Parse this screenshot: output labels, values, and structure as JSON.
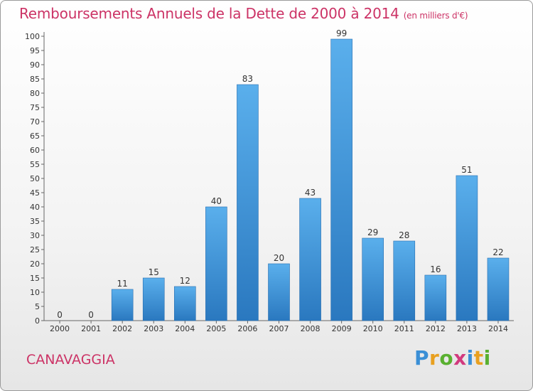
{
  "header": {
    "title": "Remboursements Annuels de la Dette de 2000 à 2014",
    "subtitle": "(en milliers d'€)"
  },
  "footer": {
    "town": "CANAVAGGIA",
    "logo_letters": [
      {
        "ch": "P",
        "color": "#3a8fd6"
      },
      {
        "ch": "r",
        "color": "#e8a020"
      },
      {
        "ch": "o",
        "color": "#59b030"
      },
      {
        "ch": "x",
        "color": "#d23a7e"
      },
      {
        "ch": "i",
        "color": "#3a8fd6"
      },
      {
        "ch": "t",
        "color": "#e8a020"
      },
      {
        "ch": "i",
        "color": "#59b030"
      }
    ]
  },
  "chart_data": {
    "type": "bar",
    "title": "Remboursements Annuels de la Dette de 2000 à 2014",
    "subtitle": "(en milliers d'€)",
    "categories": [
      "2000",
      "2001",
      "2002",
      "2003",
      "2004",
      "2005",
      "2006",
      "2007",
      "2008",
      "2009",
      "2010",
      "2011",
      "2012",
      "2013",
      "2014"
    ],
    "values": [
      0,
      0,
      11,
      15,
      12,
      40,
      83,
      20,
      43,
      99,
      29,
      28,
      16,
      51,
      22
    ],
    "ylim": [
      0,
      100
    ],
    "ytick_step": 5,
    "grid": false,
    "bar_color_top": "#5aafec",
    "bar_color_bottom": "#2a78bf"
  }
}
